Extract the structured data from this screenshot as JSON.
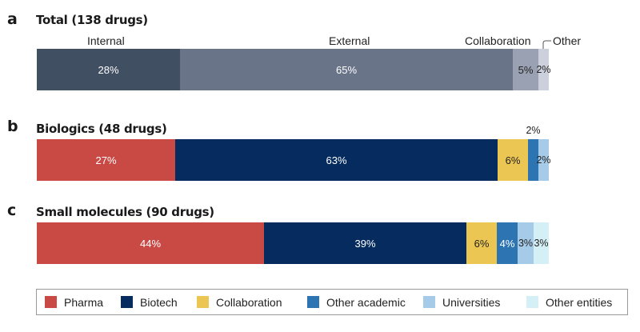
{
  "chart_data": [
    {
      "type": "bar",
      "orientation": "horizontal-stacked-100",
      "panel": "a",
      "title": "Total (138 drugs)",
      "categories": [
        "Internal",
        "External",
        "Collaboration",
        "Other"
      ],
      "values": [
        28,
        65,
        5,
        2
      ],
      "data_labels": [
        "28%",
        "65%",
        "5%",
        "2%"
      ],
      "colors": [
        "#414f63",
        "#6a7489",
        "#9aa1b2",
        "#ccd0dc"
      ],
      "label_colors": [
        "#ffffff",
        "#ffffff",
        "#222222",
        "#222222"
      ],
      "unit": "%"
    },
    {
      "type": "bar",
      "orientation": "horizontal-stacked-100",
      "panel": "b",
      "title": "Biologics (48 drugs)",
      "categories": [
        "Pharma",
        "Biotech",
        "Collaboration",
        "Other academic",
        "Universities"
      ],
      "values": [
        27,
        63,
        6,
        2,
        2
      ],
      "data_labels": [
        "27%",
        "63%",
        "6%",
        "2%",
        "2%"
      ],
      "colors": [
        "#c94a45",
        "#062c5f",
        "#ebc653",
        "#2d74b3",
        "#a6cbe8"
      ],
      "label_colors": [
        "#ffffff",
        "#ffffff",
        "#222222",
        "#222222",
        "#222222"
      ],
      "unit": "%"
    },
    {
      "type": "bar",
      "orientation": "horizontal-stacked-100",
      "panel": "c",
      "title": "Small molecules (90 drugs)",
      "categories": [
        "Pharma",
        "Biotech",
        "Collaboration",
        "Other academic",
        "Universities",
        "Other entities"
      ],
      "values": [
        44,
        39,
        6,
        4,
        3,
        3
      ],
      "data_labels": [
        "44%",
        "39%",
        "6%",
        "4%",
        "3%",
        "3%"
      ],
      "colors": [
        "#c94a45",
        "#062c5f",
        "#ebc653",
        "#2d74b3",
        "#a6cbe8",
        "#d5eff6"
      ],
      "label_colors": [
        "#ffffff",
        "#ffffff",
        "#222222",
        "#ffffff",
        "#222222",
        "#222222"
      ],
      "unit": "%"
    }
  ],
  "panels": [
    {
      "letter": "a",
      "title": "Total (138 drugs)"
    },
    {
      "letter": "b",
      "title": "Biologics (48 drugs)"
    },
    {
      "letter": "c",
      "title": "Small molecules (90 drugs)"
    }
  ],
  "panel_a_labels": [
    "Internal",
    "External",
    "Collaboration",
    "Other"
  ],
  "legend": {
    "position": "bottom",
    "items": [
      {
        "label": "Pharma",
        "color": "#c94a45"
      },
      {
        "label": "Biotech",
        "color": "#062c5f"
      },
      {
        "label": "Collaboration",
        "color": "#ebc653"
      },
      {
        "label": "Other academic",
        "color": "#2d74b3"
      },
      {
        "label": "Universities",
        "color": "#a6cbe8"
      },
      {
        "label": "Other entities",
        "color": "#d5eff6"
      }
    ]
  }
}
